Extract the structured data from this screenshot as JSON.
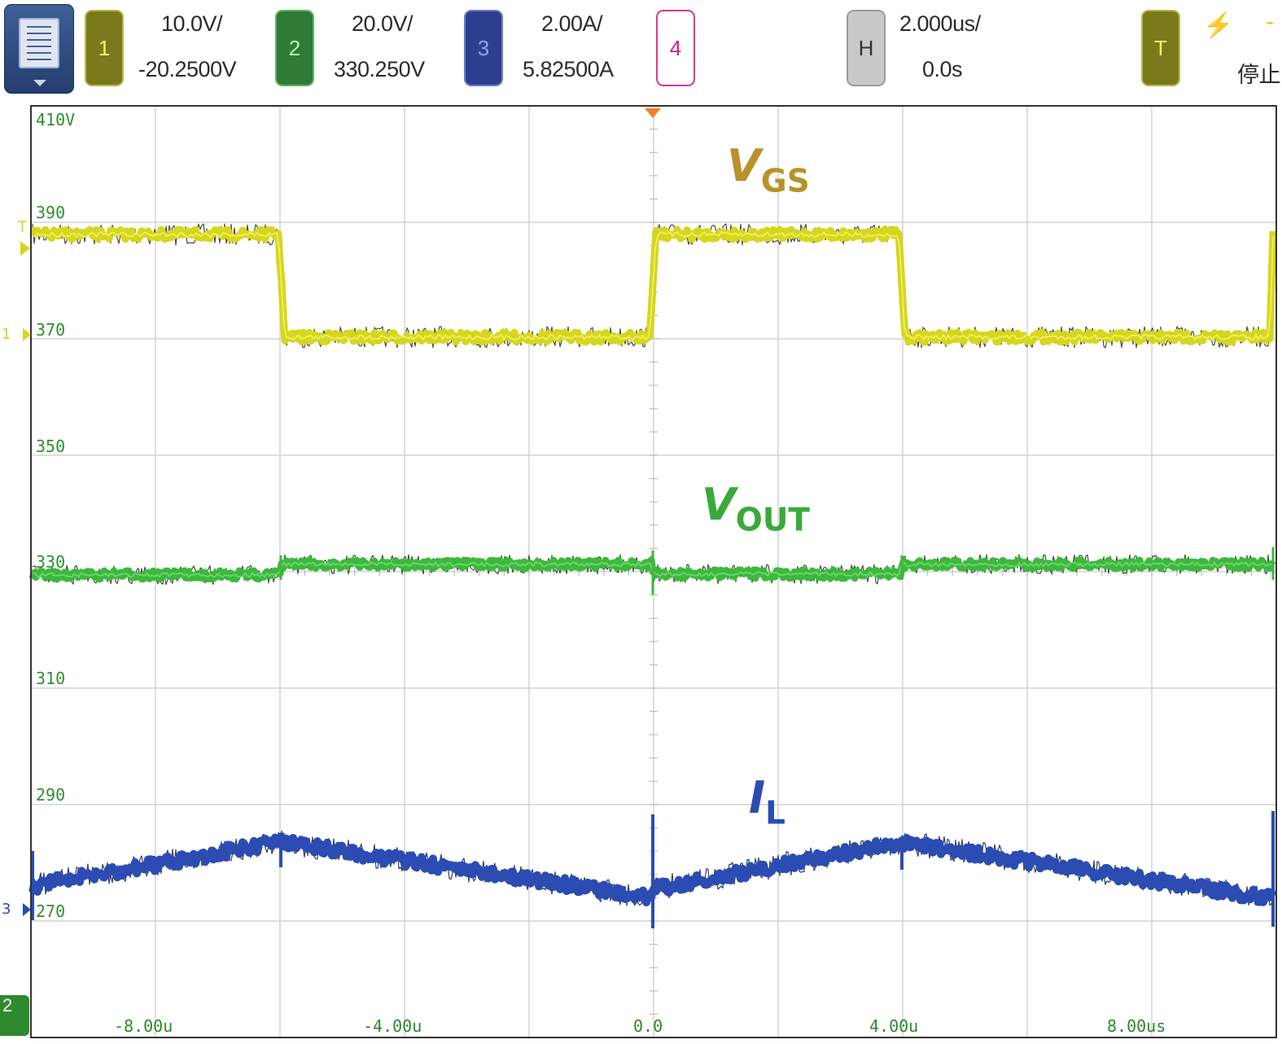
{
  "toolbar": {
    "ch1": {
      "number": "1",
      "scale": "10.0V/",
      "offset": "-20.2500V"
    },
    "ch2": {
      "number": "2",
      "scale": "20.0V/",
      "offset": "330.250V"
    },
    "ch3": {
      "number": "3",
      "scale": "2.00A/",
      "offset": "5.82500A"
    },
    "ch4": {
      "number": "4"
    },
    "horizontal": {
      "label": "H",
      "scale": "2.000us/",
      "position": "0.0s"
    },
    "trigger": {
      "label": "T",
      "status": "停止"
    }
  },
  "screen": {
    "vertical_scale_labels": [
      "410V",
      "390",
      "370",
      "350",
      "330",
      "310",
      "290",
      "270"
    ],
    "time_labels": [
      "-8.00u",
      "-4.00u",
      "0.0",
      "4.00u",
      "8.00us"
    ],
    "trace_labels": {
      "vgs": {
        "main": "V",
        "sub": "GS"
      },
      "vout": {
        "main": "V",
        "sub": "OUT"
      },
      "il": {
        "main": "I",
        "sub": "L"
      }
    },
    "markers": {
      "trigger_level": "T",
      "ch1_ground": "1",
      "ch2_ground": "2",
      "ch3_ground": "3"
    }
  },
  "colors": {
    "ch1": "#d6d61e",
    "ch2": "#3cb83c",
    "ch3": "#2b4cb3",
    "ch4": "#d91c7e",
    "grid": "#d4d4d4",
    "trigger_marker": "#f0822a"
  }
}
